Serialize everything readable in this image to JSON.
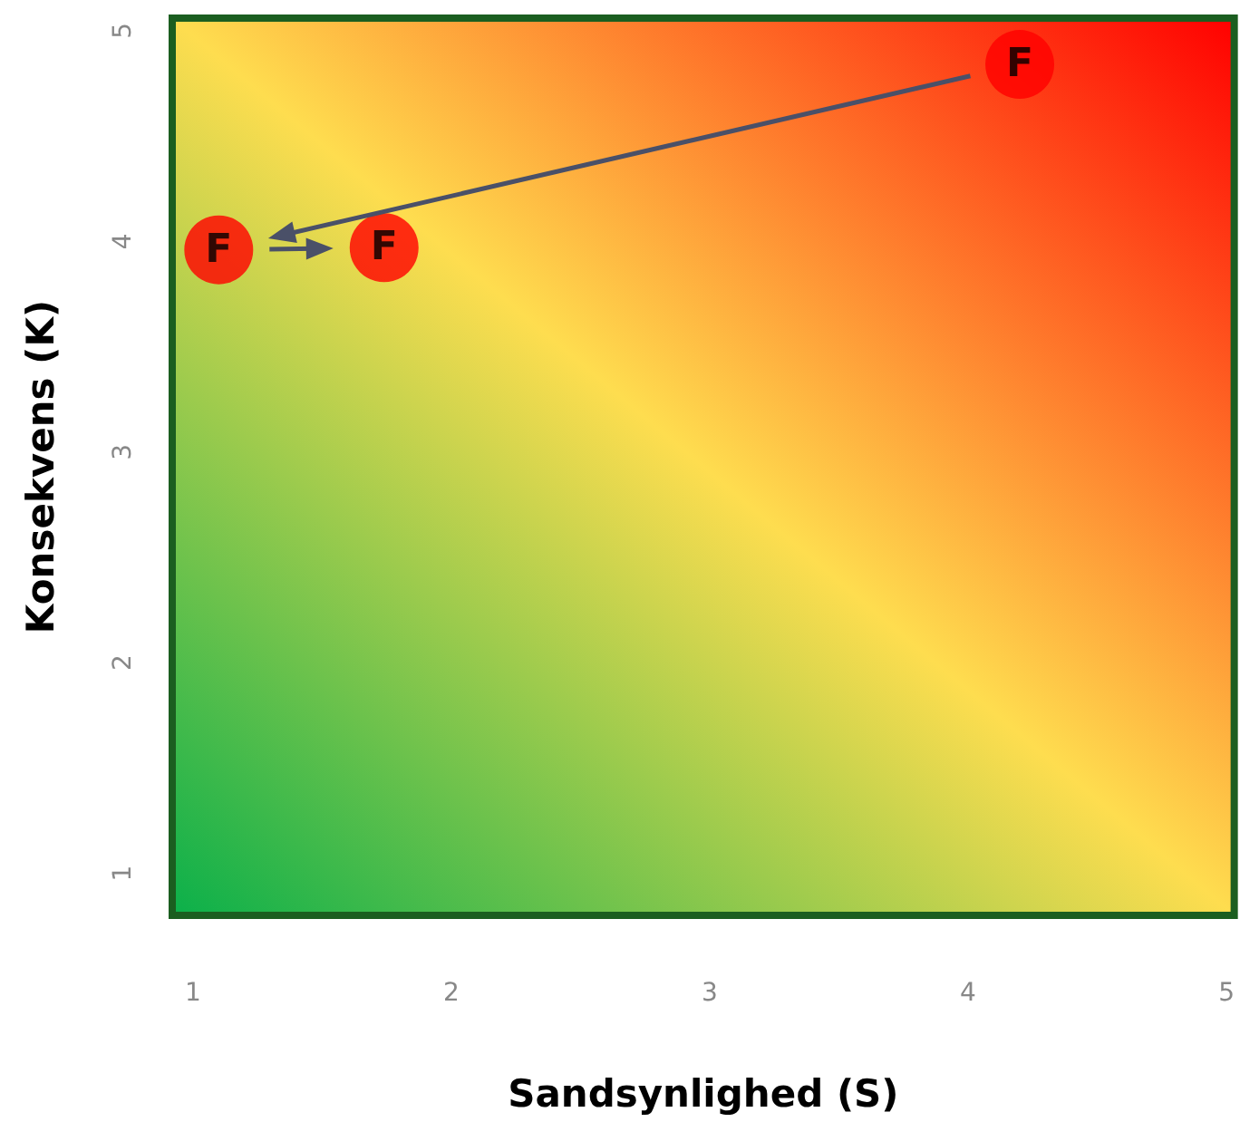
{
  "chart_data": {
    "type": "scatter",
    "xlabel": "Sandsynlighed (S)",
    "ylabel": "Konsekvens (K)",
    "x": [
      1.1,
      1.74,
      4.2
    ],
    "series": [
      {
        "color": "#ff0000",
        "values": [
          3.96,
          3.97,
          4.84
        ],
        "value_labels": [
          "F",
          "F",
          "F"
        ]
      }
    ],
    "xlim": [
      0.92,
      5.03
    ],
    "ylim": [
      0.8,
      5.06
    ],
    "xticks": [
      1,
      2,
      3,
      4,
      5
    ],
    "yticks": [
      1,
      2,
      3,
      4,
      5
    ],
    "marker": "circle"
  }
}
